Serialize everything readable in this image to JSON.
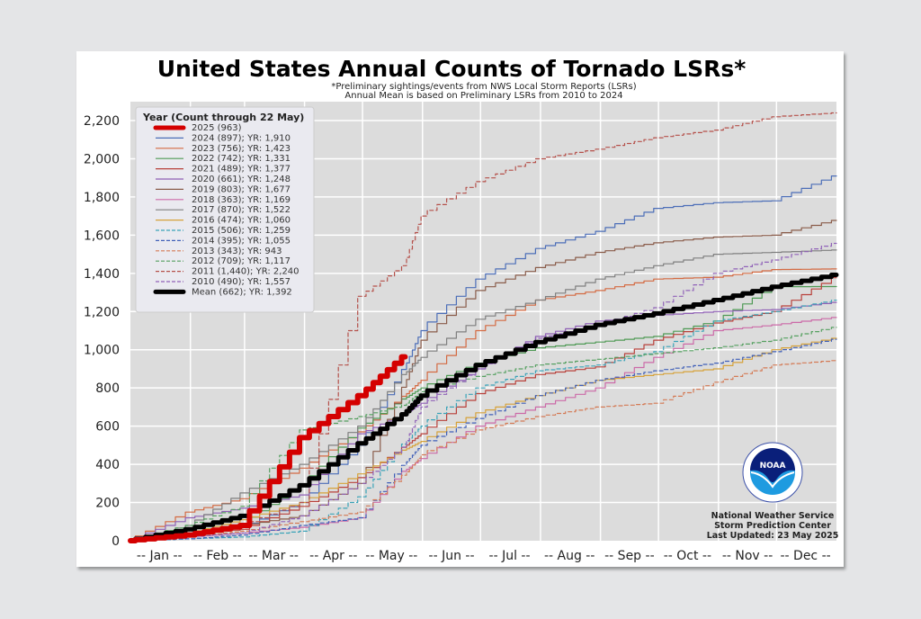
{
  "chart_data": {
    "type": "line",
    "title": "United States Annual Counts of Tornado LSRs*",
    "subtitle_lines": [
      "*Preliminary sightings/events from NWS Local Storm Reports (LSRs)",
      "Annual Mean is based on Preliminary LSRs from 2010 to 2024"
    ],
    "xlabel": "",
    "ylabel": "",
    "ylim": [
      0,
      2290
    ],
    "yticks": [
      0,
      200,
      400,
      600,
      800,
      1000,
      1200,
      1400,
      1600,
      1800,
      2000,
      2200
    ],
    "ytick_labels": [
      "0",
      "200",
      "400",
      "600",
      "800",
      "1,000",
      "1,200",
      "1,400",
      "1,600",
      "1,800",
      "2,000",
      "2,200"
    ],
    "xlim_days": [
      0,
      365
    ],
    "x_unit": "day of year",
    "month_gridlines_days": [
      31,
      59,
      90,
      120,
      151,
      181,
      212,
      243,
      273,
      304,
      334
    ],
    "xtick_days": [
      15,
      45,
      74,
      105,
      135,
      166,
      196,
      227,
      258,
      288,
      319,
      349
    ],
    "xtick_labels": [
      "-- Jan --",
      "-- Feb --",
      "-- Mar --",
      "-- Apr --",
      "-- May --",
      "-- Jun --",
      "-- Jul --",
      "-- Aug --",
      "-- Sep --",
      "-- Oct --",
      "-- Nov --",
      "-- Dec --"
    ],
    "grid": true,
    "background": "#dcdcdc",
    "legend": {
      "title": "Year (Count through 22 May)",
      "position": "top-left"
    },
    "values_note": "Cumulative counts estimated from the curves at month boundaries (approximate)",
    "x": [
      0,
      31,
      59,
      90,
      120,
      142,
      151,
      181,
      212,
      243,
      273,
      304,
      334,
      365
    ],
    "series": [
      {
        "name": "2025",
        "label": "2025 (963)",
        "color": "#d40000",
        "style": "solid",
        "width": 6,
        "values": [
          0,
          30,
          80,
          540,
          760,
          963
        ]
      },
      {
        "name": "2024",
        "label": "2024 (897); YR: 1,910",
        "color": "#4c6eb8",
        "style": "solid",
        "width": 1.2,
        "values": [
          0,
          40,
          70,
          200,
          500,
          897,
          1100,
          1370,
          1530,
          1620,
          1740,
          1770,
          1780,
          1910
        ]
      },
      {
        "name": "2023",
        "label": "2023 (756); YR: 1,423",
        "color": "#d46a42",
        "style": "solid",
        "width": 1.2,
        "values": [
          0,
          150,
          220,
          380,
          570,
          756,
          840,
          1100,
          1260,
          1310,
          1370,
          1380,
          1420,
          1423
        ]
      },
      {
        "name": "2022",
        "label": "2022 (742); YR: 1,331",
        "color": "#4f9a55",
        "style": "solid",
        "width": 1.2,
        "values": [
          0,
          40,
          90,
          290,
          590,
          742,
          800,
          930,
          1010,
          1040,
          1070,
          1150,
          1330,
          1331
        ]
      },
      {
        "name": "2021",
        "label": "2021 (489); YR: 1,377",
        "color": "#b8403a",
        "style": "solid",
        "width": 1.2,
        "values": [
          0,
          30,
          60,
          180,
          330,
          489,
          560,
          770,
          870,
          910,
          1050,
          1140,
          1200,
          1377
        ]
      },
      {
        "name": "2020",
        "label": "2020 (661); YR: 1,248",
        "color": "#8f5fb5",
        "style": "solid",
        "width": 1.2,
        "values": [
          0,
          120,
          170,
          240,
          560,
          661,
          720,
          900,
          1070,
          1150,
          1180,
          1200,
          1210,
          1248
        ]
      },
      {
        "name": "2019",
        "label": "2019 (803); YR: 1,677",
        "color": "#8a5c4a",
        "style": "solid",
        "width": 1.2,
        "values": [
          0,
          40,
          80,
          130,
          300,
          803,
          1050,
          1310,
          1430,
          1510,
          1560,
          1590,
          1600,
          1677
        ]
      },
      {
        "name": "2018",
        "label": "2018 (363); YR: 1,169",
        "color": "#cc6aa8",
        "style": "solid",
        "width": 1.2,
        "values": [
          0,
          20,
          40,
          70,
          120,
          363,
          430,
          600,
          700,
          800,
          960,
          1100,
          1130,
          1169
        ]
      },
      {
        "name": "2017",
        "label": "2017 (870); YR: 1,522",
        "color": "#7f7f7f",
        "style": "solid",
        "width": 1.2,
        "values": [
          0,
          80,
          250,
          400,
          600,
          870,
          960,
          1160,
          1260,
          1370,
          1440,
          1500,
          1510,
          1522
        ]
      },
      {
        "name": "2016",
        "label": "2016 (474); YR: 1,060",
        "color": "#d6a23a",
        "style": "solid",
        "width": 1.2,
        "values": [
          0,
          40,
          110,
          200,
          350,
          474,
          520,
          670,
          760,
          840,
          870,
          900,
          1000,
          1060
        ]
      },
      {
        "name": "2015",
        "label": "2015 (506); YR: 1,259",
        "color": "#3aa3b8",
        "style": "dashed",
        "width": 1.2,
        "values": [
          0,
          10,
          20,
          50,
          230,
          506,
          600,
          800,
          890,
          920,
          990,
          1150,
          1200,
          1259
        ]
      },
      {
        "name": "2014",
        "label": "2014 (395); YR: 1,055",
        "color": "#3f5fb8",
        "style": "dashed",
        "width": 1.2,
        "values": [
          0,
          10,
          30,
          80,
          120,
          395,
          500,
          640,
          760,
          840,
          890,
          930,
          990,
          1055
        ]
      },
      {
        "name": "2013",
        "label": "2013 (343); YR: 943",
        "color": "#d47a55",
        "style": "dashed",
        "width": 1.2,
        "values": [
          0,
          20,
          50,
          100,
          150,
          343,
          450,
          580,
          650,
          700,
          720,
          830,
          920,
          943
        ]
      },
      {
        "name": "2012",
        "label": "2012 (709); YR: 1,117",
        "color": "#55a060",
        "style": "dashed",
        "width": 1.2,
        "values": [
          0,
          80,
          180,
          580,
          650,
          709,
          780,
          860,
          920,
          950,
          980,
          1010,
          1050,
          1117
        ]
      },
      {
        "name": "2011",
        "label": "2011 (1,440); YR: 2,240",
        "color": "#b5504a",
        "style": "dashed",
        "width": 1.2,
        "values": [
          0,
          40,
          80,
          200,
          1280,
          1440,
          1700,
          1880,
          2000,
          2050,
          2110,
          2150,
          2220,
          2240
        ]
      },
      {
        "name": "2010",
        "label": "2010 (490); YR: 1,557",
        "color": "#9062b8",
        "style": "dashed",
        "width": 1.2,
        "values": [
          0,
          20,
          40,
          130,
          300,
          490,
          700,
          900,
          1060,
          1130,
          1220,
          1400,
          1470,
          1557
        ]
      },
      {
        "name": "Mean",
        "label": "Mean (662); YR: 1,392",
        "color": "#000000",
        "style": "solid",
        "width": 5,
        "values": [
          0,
          60,
          130,
          290,
          510,
          662,
          760,
          920,
          1040,
          1130,
          1190,
          1260,
          1330,
          1392
        ]
      }
    ]
  },
  "credits": {
    "line1": "National Weather Service",
    "line2": "Storm Prediction Center",
    "line3": "Last Updated: 23 May 2025"
  },
  "logo": {
    "icon": "noaa-logo-icon",
    "text": "NOAA",
    "colors": {
      "navy": "#0a1f7a",
      "blue": "#1e9be0"
    }
  }
}
